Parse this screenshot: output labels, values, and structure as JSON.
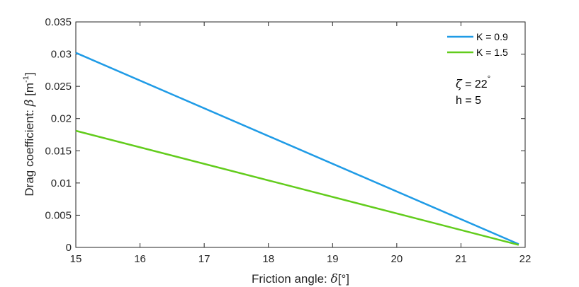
{
  "chart_data": {
    "type": "line",
    "xlabel_text": "Friction angle: ",
    "xlabel_symbol": "δ",
    "xlabel_unit": "[°]",
    "ylabel_text": "Drag coefficient: ",
    "ylabel_symbol": "β",
    "ylabel_unit_open": " [m",
    "ylabel_unit_exp": "-1",
    "ylabel_unit_close": "]",
    "xlim": [
      15,
      22
    ],
    "ylim": [
      0,
      0.035
    ],
    "xticks": [
      "15",
      "16",
      "17",
      "18",
      "19",
      "20",
      "21",
      "22"
    ],
    "yticks": [
      "0",
      "0.005",
      "0.01",
      "0.015",
      "0.02",
      "0.025",
      "0.03",
      "0.035"
    ],
    "grid": false,
    "legend_position": "top-right",
    "series": [
      {
        "name": "K = 0.9",
        "color": "#1f9be6",
        "x": [
          15,
          21.9
        ],
        "y": [
          0.0302,
          0.0005
        ]
      },
      {
        "name": "K = 1.5",
        "color": "#62cc1c",
        "x": [
          15,
          21.9
        ],
        "y": [
          0.0181,
          0.0004
        ]
      }
    ],
    "annotations": {
      "zeta_symbol": "ζ",
      "zeta_value": " = 22",
      "zeta_degree": "°",
      "h_line": "h = 5"
    }
  }
}
